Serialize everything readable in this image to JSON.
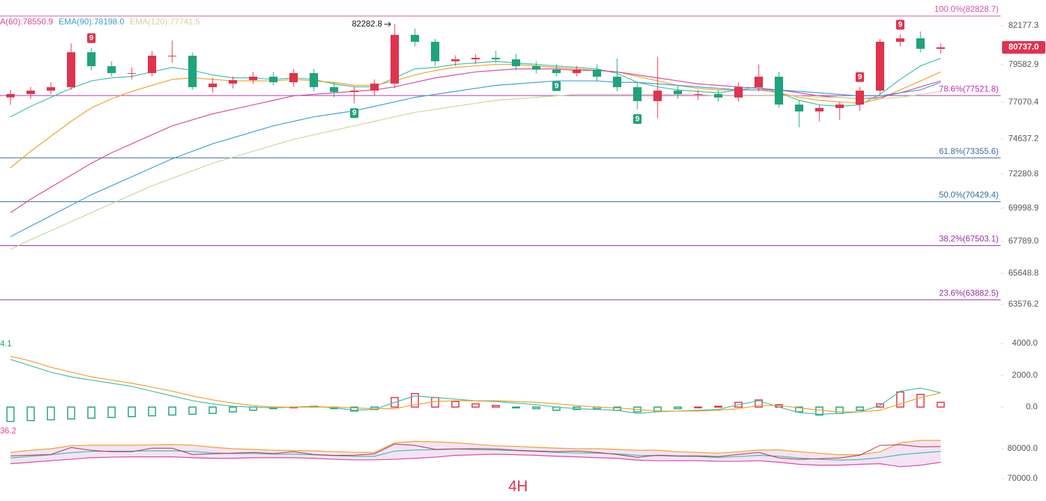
{
  "chart_data": {
    "type": "candlestick",
    "up_color": "#e0334e",
    "down_color": "#1fa37c",
    "ylim": [
      62500,
      83900
    ],
    "yticks": [
      82177.3,
      79582.9,
      77070.4,
      74637.2,
      72280.8,
      69998.9,
      {
        "value": 67789.0,
        "label": "67789.0"
      },
      65648.8,
      63576.2
    ],
    "open": [
      77400,
      77620,
      77850,
      78080,
      80410,
      79480,
      79020,
      79020,
      80180,
      80180,
      78080,
      78320,
      78550,
      78780,
      78410,
      79020,
      78080,
      77760,
      77850,
      78320,
      81570,
      81110,
      79810,
      79940,
      80040,
      79940,
      79480,
      79250,
      79020,
      79250,
      78780,
      78080,
      77150,
      77850,
      77620,
      77620,
      77390,
      78080,
      78780,
      76920,
      76460,
      76690,
      76920,
      77850,
      81110,
      81340,
      80640
    ],
    "high": [
      77900,
      78100,
      78400,
      81000,
      80700,
      79800,
      79400,
      80500,
      81200,
      80400,
      78700,
      78800,
      79100,
      79100,
      79300,
      79300,
      78400,
      78100,
      78600,
      82282.8,
      82000,
      81300,
      80200,
      80300,
      80500,
      80300,
      79800,
      79600,
      79500,
      79600,
      80000,
      78400,
      80100,
      78200,
      77900,
      77900,
      78400,
      79600,
      79100,
      77200,
      76900,
      77100,
      78100,
      81300,
      81600,
      81800,
      81000
    ],
    "low": [
      76900,
      77300,
      77600,
      77900,
      79200,
      78800,
      78600,
      78800,
      79700,
      77900,
      77700,
      78000,
      78300,
      78200,
      78100,
      77800,
      77400,
      77000,
      77500,
      78000,
      80800,
      79500,
      79500,
      79600,
      79700,
      79200,
      79000,
      78800,
      78800,
      78500,
      77800,
      76600,
      76000,
      77300,
      77200,
      77100,
      77100,
      77800,
      76700,
      75400,
      75800,
      75900,
      76500,
      77600,
      80800,
      80400,
      80300
    ],
    "close": [
      77620,
      77850,
      78080,
      80410,
      79480,
      79020,
      79020,
      80180,
      80180,
      78080,
      78320,
      78550,
      78780,
      78410,
      79020,
      78080,
      77760,
      77850,
      78320,
      81570,
      81110,
      79810,
      79940,
      80040,
      79940,
      79480,
      79250,
      79020,
      79250,
      78780,
      78080,
      77150,
      77850,
      77620,
      77620,
      77390,
      78080,
      78780,
      76920,
      76460,
      76690,
      76920,
      77850,
      81110,
      81340,
      80640,
      80740
    ],
    "td_sell": [
      null,
      null,
      null,
      null,
      "9",
      null,
      null,
      null,
      null,
      null,
      null,
      null,
      null,
      null,
      null,
      null,
      null,
      null,
      null,
      null,
      null,
      null,
      null,
      null,
      null,
      null,
      null,
      null,
      null,
      null,
      null,
      null,
      null,
      null,
      null,
      null,
      null,
      null,
      null,
      null,
      null,
      null,
      "9",
      null,
      "9",
      null,
      null
    ],
    "td_buy": [
      null,
      null,
      null,
      null,
      null,
      null,
      null,
      null,
      null,
      null,
      null,
      null,
      null,
      null,
      null,
      null,
      null,
      "9",
      null,
      null,
      null,
      null,
      null,
      null,
      null,
      null,
      null,
      "9",
      null,
      null,
      null,
      "9",
      null,
      null,
      null,
      null,
      null,
      null,
      null,
      null,
      null,
      null,
      null,
      null,
      null,
      null,
      null
    ],
    "emas": [
      {
        "color": "#3fbfa8",
        "values": [
          76100,
          76800,
          77400,
          78000,
          78500,
          78700,
          78800,
          79100,
          79400,
          79200,
          78900,
          78700,
          78700,
          78600,
          78700,
          78600,
          78300,
          78100,
          78100,
          78700,
          79300,
          79400,
          79600,
          79700,
          79800,
          79700,
          79600,
          79500,
          79400,
          79300,
          79000,
          78400,
          78100,
          77900,
          77800,
          77700,
          77900,
          78100,
          77700,
          77200,
          76900,
          76800,
          76900,
          77600,
          78600,
          79500,
          80000
        ]
      },
      {
        "color": "#f0a020",
        "values": [
          72700,
          73800,
          74800,
          75800,
          76700,
          77300,
          77800,
          78200,
          78600,
          78700,
          78600,
          78500,
          78500,
          78500,
          78600,
          78500,
          78400,
          78200,
          78200,
          78500,
          78900,
          79200,
          79400,
          79500,
          79600,
          79600,
          79500,
          79400,
          79300,
          79200,
          79100,
          78800,
          78500,
          78200,
          78000,
          77900,
          77900,
          77900,
          77700,
          77400,
          77200,
          77100,
          77000,
          77300,
          77900,
          78500,
          79100
        ]
      },
      {
        "name": "A(60):78550.9",
        "color": "#d9479a",
        "values": [
          69700,
          70600,
          71400,
          72200,
          73000,
          73700,
          74300,
          74900,
          75500,
          75900,
          76300,
          76600,
          76900,
          77200,
          77500,
          77600,
          77700,
          77800,
          77900,
          78100,
          78400,
          78700,
          78900,
          79100,
          79200,
          79300,
          79300,
          79300,
          79200,
          79200,
          79100,
          78900,
          78700,
          78500,
          78300,
          78200,
          78100,
          78000,
          77900,
          77700,
          77500,
          77400,
          77300,
          77400,
          77700,
          78100,
          78500
        ]
      },
      {
        "name": "EMA(90):78198.0",
        "color": "#3aa0d0",
        "values": [
          68100,
          68800,
          69500,
          70200,
          70900,
          71500,
          72100,
          72700,
          73300,
          73800,
          74300,
          74700,
          75100,
          75500,
          75800,
          76100,
          76300,
          76500,
          76800,
          77100,
          77400,
          77600,
          77800,
          78000,
          78200,
          78300,
          78400,
          78500,
          78500,
          78500,
          78400,
          78400,
          78300,
          78200,
          78100,
          78000,
          77900,
          77900,
          77900,
          77800,
          77700,
          77600,
          77500,
          77500,
          77700,
          77900,
          78400
        ]
      },
      {
        "name": "EMA(120):77741.5",
        "color": "#c8d89a",
        "values": [
          67250,
          67900,
          68500,
          69100,
          69700,
          70300,
          70900,
          71500,
          72000,
          72500,
          73000,
          73400,
          73800,
          74200,
          74600,
          74900,
          75200,
          75500,
          75800,
          76100,
          76400,
          76600,
          76800,
          77000,
          77200,
          77300,
          77400,
          77500,
          77600,
          77600,
          77600,
          77600,
          77600,
          77600,
          77600,
          77500,
          77500,
          77500,
          77500,
          77500,
          77400,
          77400,
          77300,
          77300,
          77400,
          77600,
          77800
        ]
      }
    ],
    "fib_levels": [
      {
        "value": 82828.7,
        "label": "100.0%(82828.7)",
        "color": "#d94fa8"
      },
      {
        "value": 77521.8,
        "label": "78.6%(77521.8)",
        "color": "#c02cb8"
      },
      {
        "value": 73355.6,
        "label": "61.8%(73355.6)",
        "color": "#3e6a96"
      },
      {
        "value": 70429.4,
        "label": "50.0%(70429.4)",
        "color": "#2f6f9e"
      },
      {
        "value": 67503.1,
        "label": "38.2%(67503.1)",
        "color": "#9a2aa8"
      },
      {
        "value": 63882.5,
        "label": "23.6%(63882.5)",
        "color": "#9a2aa8"
      }
    ],
    "last_price": 80737.0,
    "last_price_label": "80737.0",
    "watermark": "4H",
    "macd": {
      "label": "4.1",
      "ylim": [
        -1350,
        4570
      ],
      "yticks": [
        {
          "value": 4000,
          "label": "4000.0"
        },
        {
          "value": 2000,
          "label": "2000.0"
        },
        {
          "value": 0,
          "label": "0.0"
        }
      ],
      "hist": [
        -900,
        -850,
        -800,
        -750,
        -700,
        -650,
        -600,
        -550,
        -500,
        -450,
        -400,
        -300,
        -200,
        -100,
        0,
        50,
        -100,
        -250,
        -150,
        600,
        850,
        600,
        350,
        200,
        100,
        -50,
        -100,
        -200,
        -150,
        -100,
        -200,
        -300,
        -250,
        -100,
        0,
        50,
        300,
        450,
        150,
        -300,
        -500,
        -400,
        -200,
        200,
        950,
        800,
        300
      ],
      "lines": [
        {
          "color": "#3fbfa8",
          "values": [
            3000,
            2600,
            2200,
            1900,
            1700,
            1500,
            1300,
            1000,
            700,
            400,
            200,
            50,
            0,
            -50,
            0,
            50,
            -50,
            -200,
            -150,
            300,
            700,
            600,
            500,
            400,
            350,
            250,
            150,
            0,
            -100,
            -150,
            -200,
            -400,
            -300,
            -250,
            -200,
            -150,
            150,
            400,
            0,
            -350,
            -450,
            -400,
            -300,
            100,
            1000,
            1200,
            900
          ]
        },
        {
          "color": "#f0a020",
          "values": [
            3200,
            2900,
            2500,
            2200,
            1900,
            1700,
            1500,
            1250,
            1000,
            700,
            450,
            250,
            100,
            0,
            0,
            0,
            0,
            -50,
            -100,
            -100,
            150,
            350,
            400,
            400,
            400,
            350,
            300,
            200,
            100,
            0,
            -50,
            -150,
            -250,
            -250,
            -250,
            -200,
            -100,
            100,
            100,
            -50,
            -200,
            -300,
            -300,
            -200,
            200,
            600,
            900
          ]
        }
      ]
    },
    "band_pane": {
      "label": "36.2",
      "ylim": [
        66980,
        84420
      ],
      "yticks": [
        {
          "value": 80000,
          "label": "80000.0"
        },
        {
          "value": 70000,
          "label": "70000.0"
        }
      ],
      "upper": [
        78800,
        79500,
        80000,
        81000,
        81200,
        81200,
        81200,
        81300,
        81400,
        81200,
        80500,
        80000,
        79800,
        79500,
        79400,
        79300,
        79000,
        78800,
        78800,
        82000,
        82500,
        82300,
        82000,
        81500,
        81000,
        80800,
        80500,
        80200,
        80000,
        80000,
        79800,
        79500,
        79500,
        79000,
        78800,
        78500,
        79000,
        79600,
        79600,
        79000,
        78500,
        78000,
        78000,
        79000,
        82000,
        82800,
        82800
      ],
      "middle": [
        76900,
        77500,
        78000,
        78700,
        79100,
        79200,
        79200,
        79300,
        79300,
        79100,
        78600,
        78400,
        78400,
        78200,
        78200,
        78000,
        77700,
        77500,
        77500,
        79200,
        79600,
        79700,
        79900,
        79700,
        79600,
        79400,
        79100,
        78800,
        78600,
        78500,
        78300,
        77800,
        77700,
        77500,
        77400,
        77100,
        77400,
        77800,
        77500,
        76900,
        76500,
        76200,
        76400,
        77000,
        78000,
        78600,
        79100
      ],
      "lower": [
        75000,
        75500,
        76000,
        76500,
        77000,
        77200,
        77300,
        77300,
        77300,
        77000,
        76800,
        76800,
        77000,
        77000,
        77000,
        76800,
        76500,
        76300,
        76300,
        76500,
        76800,
        77200,
        77800,
        78000,
        78200,
        78000,
        77800,
        77500,
        77300,
        77000,
        76800,
        76200,
        76000,
        76000,
        76000,
        75800,
        75800,
        76000,
        75500,
        74800,
        74500,
        74500,
        74800,
        75000,
        74000,
        74500,
        75500
      ],
      "upper_color": "#f0a020",
      "middle_color": "#3fbfa8",
      "lower_color": "#d9479a",
      "fill": "#f3dcf3"
    }
  }
}
